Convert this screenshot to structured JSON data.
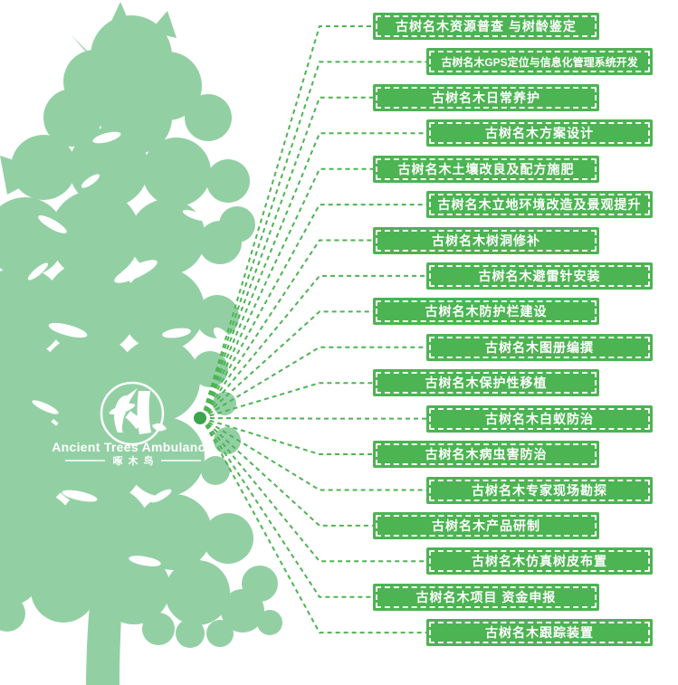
{
  "logo": {
    "title": "Ancient Trees Ambulance",
    "subtitle": "啄木鸟",
    "mark": "woodpecker-in-circle"
  },
  "colors": {
    "canopy_green": "#92D0A4",
    "box_green": "#4CB452",
    "line_green": "#4FB355",
    "dot_green": "#3BA54D",
    "text_white": "#FFFFFF"
  },
  "services": {
    "items": [
      {
        "label": "古树名木资源普查 与树龄鉴定"
      },
      {
        "label": "古树名木GPS定位与信息化管理系统开发"
      },
      {
        "label": "古树名木日常养护"
      },
      {
        "label": "古树名木方案设计"
      },
      {
        "label": "古树名木土壤改良及配方施肥"
      },
      {
        "label": "古树名木立地环境改造及景观提升"
      },
      {
        "label": "古树名木树洞修补"
      },
      {
        "label": "古树名木避雷针安装"
      },
      {
        "label": "古树名木防护栏建设"
      },
      {
        "label": "古树名木图册编撰"
      },
      {
        "label": "古树名木保护性移植"
      },
      {
        "label": "古树名木白蚁防治"
      },
      {
        "label": "古树名木病虫害防治"
      },
      {
        "label": "古树名木专家现场勘探"
      },
      {
        "label": "古树名木产品研制"
      },
      {
        "label": "古树名木仿真树皮布置"
      },
      {
        "label": "古树名木项目 资金申报"
      },
      {
        "label": "古树名木跟踪装置"
      }
    ]
  }
}
